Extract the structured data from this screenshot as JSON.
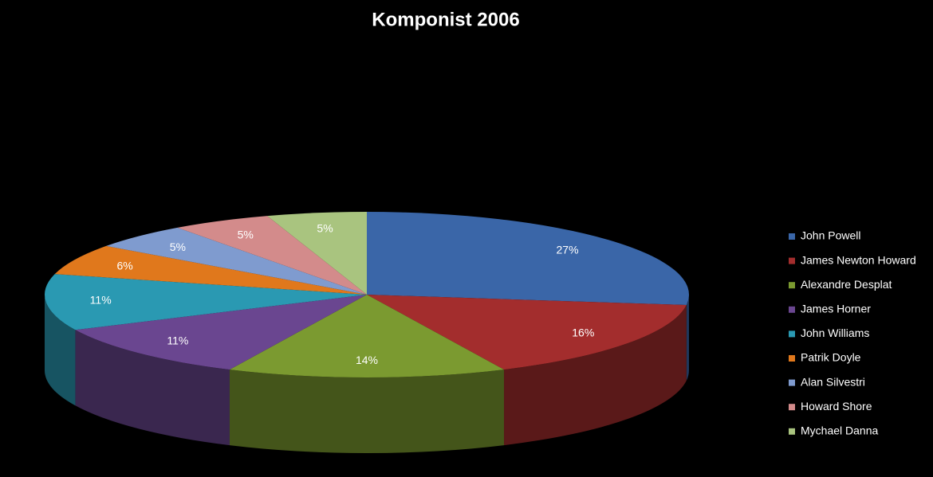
{
  "chart_data": {
    "type": "pie",
    "title": "Komponist 2006",
    "categories": [
      "John Powell",
      "James Newton Howard",
      "Alexandre Desplat",
      "James Horner",
      "John Williams",
      "Patrik Doyle",
      "Alan Silvestri",
      "Howard Shore",
      "Mychael Danna"
    ],
    "values": [
      27,
      16,
      14,
      11,
      11,
      6,
      5,
      5,
      5
    ],
    "value_labels": [
      "27%",
      "16%",
      "14%",
      "11%",
      "11%",
      "6%",
      "5%",
      "5%",
      "5%"
    ],
    "colors": [
      "#3a66a8",
      "#a32d2d",
      "#7b9a30",
      "#6a4690",
      "#2a99b2",
      "#e0781c",
      "#7f9bcf",
      "#d38b8b",
      "#a9c47f"
    ],
    "legend": "right"
  }
}
